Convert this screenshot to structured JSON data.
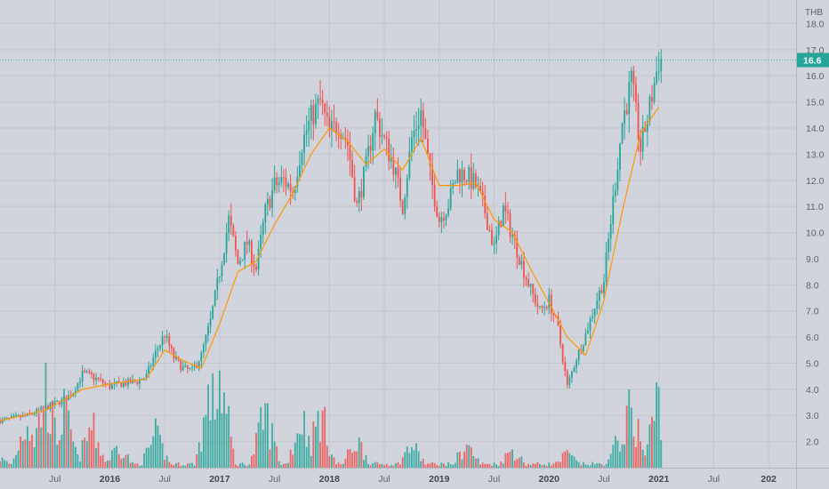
{
  "chart_data": {
    "type": "candlestick",
    "currency": "THB",
    "last_price_label": "16.6",
    "ylim": [
      1.0,
      18.9
    ],
    "y_ticks": [
      "2.0",
      "3.0",
      "4.0",
      "5.0",
      "6.0",
      "7.0",
      "8.0",
      "9.0",
      "10.0",
      "11.0",
      "12.0",
      "13.0",
      "14.0",
      "15.0",
      "16.0",
      "17.0",
      "18.0"
    ],
    "x_ticks": [
      {
        "label": "Jul",
        "date": "2015-07",
        "bold": false
      },
      {
        "label": "2016",
        "date": "2016-01",
        "bold": true
      },
      {
        "label": "Jul",
        "date": "2016-07",
        "bold": false
      },
      {
        "label": "2017",
        "date": "2017-01",
        "bold": true
      },
      {
        "label": "Jul",
        "date": "2017-07",
        "bold": false
      },
      {
        "label": "2018",
        "date": "2018-01",
        "bold": true
      },
      {
        "label": "Jul",
        "date": "2018-07",
        "bold": false
      },
      {
        "label": "2019",
        "date": "2019-01",
        "bold": true
      },
      {
        "label": "Jul",
        "date": "2019-07",
        "bold": false
      },
      {
        "label": "2020",
        "date": "2020-01",
        "bold": true
      },
      {
        "label": "Jul",
        "date": "2020-07",
        "bold": false
      },
      {
        "label": "2021",
        "date": "2021-01",
        "bold": true
      },
      {
        "label": "Jul",
        "date": "2021-07",
        "bold": false
      },
      {
        "label": "202",
        "date": "2022-01",
        "bold": true
      }
    ],
    "x_range": [
      "2015-01",
      "2022-04"
    ],
    "price_path": [
      [
        "2015-01",
        2.8
      ],
      [
        "2015-04",
        3.0
      ],
      [
        "2015-06",
        3.3
      ],
      [
        "2015-08",
        3.6
      ],
      [
        "2015-09",
        3.9
      ],
      [
        "2015-10",
        4.6
      ],
      [
        "2015-11",
        4.5
      ],
      [
        "2016-01",
        4.1
      ],
      [
        "2016-02",
        4.2
      ],
      [
        "2016-04",
        4.3
      ],
      [
        "2016-05",
        4.5
      ],
      [
        "2016-06",
        5.4
      ],
      [
        "2016-07",
        6.1
      ],
      [
        "2016-08",
        5.2
      ],
      [
        "2016-09",
        4.8
      ],
      [
        "2016-10",
        4.7
      ],
      [
        "2016-11",
        5.3
      ],
      [
        "2016-12",
        6.6
      ],
      [
        "2017-01",
        8.5
      ],
      [
        "2017-02",
        10.5
      ],
      [
        "2017-03",
        8.8
      ],
      [
        "2017-04",
        9.6
      ],
      [
        "2017-05",
        8.6
      ],
      [
        "2017-06",
        10.8
      ],
      [
        "2017-07",
        11.8
      ],
      [
        "2017-08",
        12.0
      ],
      [
        "2017-09",
        11.6
      ],
      [
        "2017-10",
        13.4
      ],
      [
        "2017-11",
        14.4
      ],
      [
        "2017-12",
        15.0
      ],
      [
        "2018-01",
        13.8
      ],
      [
        "2018-02",
        14.2
      ],
      [
        "2018-03",
        13.4
      ],
      [
        "2018-04",
        11.0
      ],
      [
        "2018-05",
        12.5
      ],
      [
        "2018-06",
        14.5
      ],
      [
        "2018-07",
        13.5
      ],
      [
        "2018-08",
        12.6
      ],
      [
        "2018-09",
        11.0
      ],
      [
        "2018-10",
        13.6
      ],
      [
        "2018-11",
        14.6
      ],
      [
        "2018-12",
        12.2
      ],
      [
        "2019-01",
        10.5
      ],
      [
        "2019-02",
        11.1
      ],
      [
        "2019-03",
        12.3
      ],
      [
        "2019-04",
        12.2
      ],
      [
        "2019-05",
        11.8
      ],
      [
        "2019-06",
        10.8
      ],
      [
        "2019-07",
        9.4
      ],
      [
        "2019-08",
        10.9
      ],
      [
        "2019-09",
        9.9
      ],
      [
        "2019-10",
        8.8
      ],
      [
        "2019-11",
        7.8
      ],
      [
        "2019-12",
        7.0
      ],
      [
        "2020-01",
        7.4
      ],
      [
        "2020-02",
        6.3
      ],
      [
        "2020-03",
        4.1
      ],
      [
        "2020-04",
        5.2
      ],
      [
        "2020-05",
        6.1
      ],
      [
        "2020-06",
        7.2
      ],
      [
        "2020-07",
        8.2
      ],
      [
        "2020-08",
        11.2
      ],
      [
        "2020-09",
        14.2
      ],
      [
        "2020-10",
        15.8
      ],
      [
        "2020-11",
        13.2
      ],
      [
        "2020-12",
        14.8
      ],
      [
        "2021-01",
        16.6
      ]
    ],
    "ma_path": [
      [
        "2015-01",
        2.8
      ],
      [
        "2015-06",
        3.2
      ],
      [
        "2015-10",
        4.0
      ],
      [
        "2016-01",
        4.2
      ],
      [
        "2016-05",
        4.4
      ],
      [
        "2016-07",
        5.5
      ],
      [
        "2016-09",
        5.1
      ],
      [
        "2016-11",
        4.8
      ],
      [
        "2017-01",
        6.5
      ],
      [
        "2017-03",
        8.5
      ],
      [
        "2017-05",
        8.9
      ],
      [
        "2017-07",
        10.3
      ],
      [
        "2017-09",
        11.5
      ],
      [
        "2017-11",
        13.0
      ],
      [
        "2018-01",
        14.0
      ],
      [
        "2018-03",
        13.5
      ],
      [
        "2018-05",
        12.6
      ],
      [
        "2018-07",
        13.2
      ],
      [
        "2018-09",
        12.4
      ],
      [
        "2018-11",
        13.6
      ],
      [
        "2019-01",
        11.8
      ],
      [
        "2019-03",
        11.8
      ],
      [
        "2019-05",
        11.9
      ],
      [
        "2019-07",
        10.5
      ],
      [
        "2019-09",
        10.0
      ],
      [
        "2019-11",
        8.6
      ],
      [
        "2020-01",
        7.3
      ],
      [
        "2020-03",
        6.0
      ],
      [
        "2020-05",
        5.3
      ],
      [
        "2020-07",
        7.4
      ],
      [
        "2020-09",
        10.8
      ],
      [
        "2020-11",
        13.8
      ],
      [
        "2021-01",
        14.8
      ]
    ],
    "colors": {
      "background": "#d1d4dc",
      "up": "#26a69a",
      "down": "#ef5350",
      "ma": "#ff9800",
      "price_line": "#26a69a",
      "grid": "#c3c6ce",
      "label_bg": "#26a69a"
    },
    "volume_bursts": [
      [
        "2015-01",
        0.1
      ],
      [
        "2015-04",
        0.55
      ],
      [
        "2015-06",
        0.85
      ],
      [
        "2015-08",
        0.6
      ],
      [
        "2015-11",
        0.45
      ],
      [
        "2016-02",
        0.25
      ],
      [
        "2016-06",
        0.35
      ],
      [
        "2016-12",
        0.8
      ],
      [
        "2017-01",
        1.0
      ],
      [
        "2017-06",
        0.6
      ],
      [
        "2017-10",
        0.55
      ],
      [
        "2017-12",
        0.6
      ],
      [
        "2018-04",
        0.3
      ],
      [
        "2018-10",
        0.25
      ],
      [
        "2019-04",
        0.25
      ],
      [
        "2019-09",
        0.2
      ],
      [
        "2020-03",
        0.15
      ],
      [
        "2020-09",
        0.4
      ],
      [
        "2020-10",
        0.65
      ],
      [
        "2021-01",
        0.8
      ]
    ],
    "grid": true
  }
}
